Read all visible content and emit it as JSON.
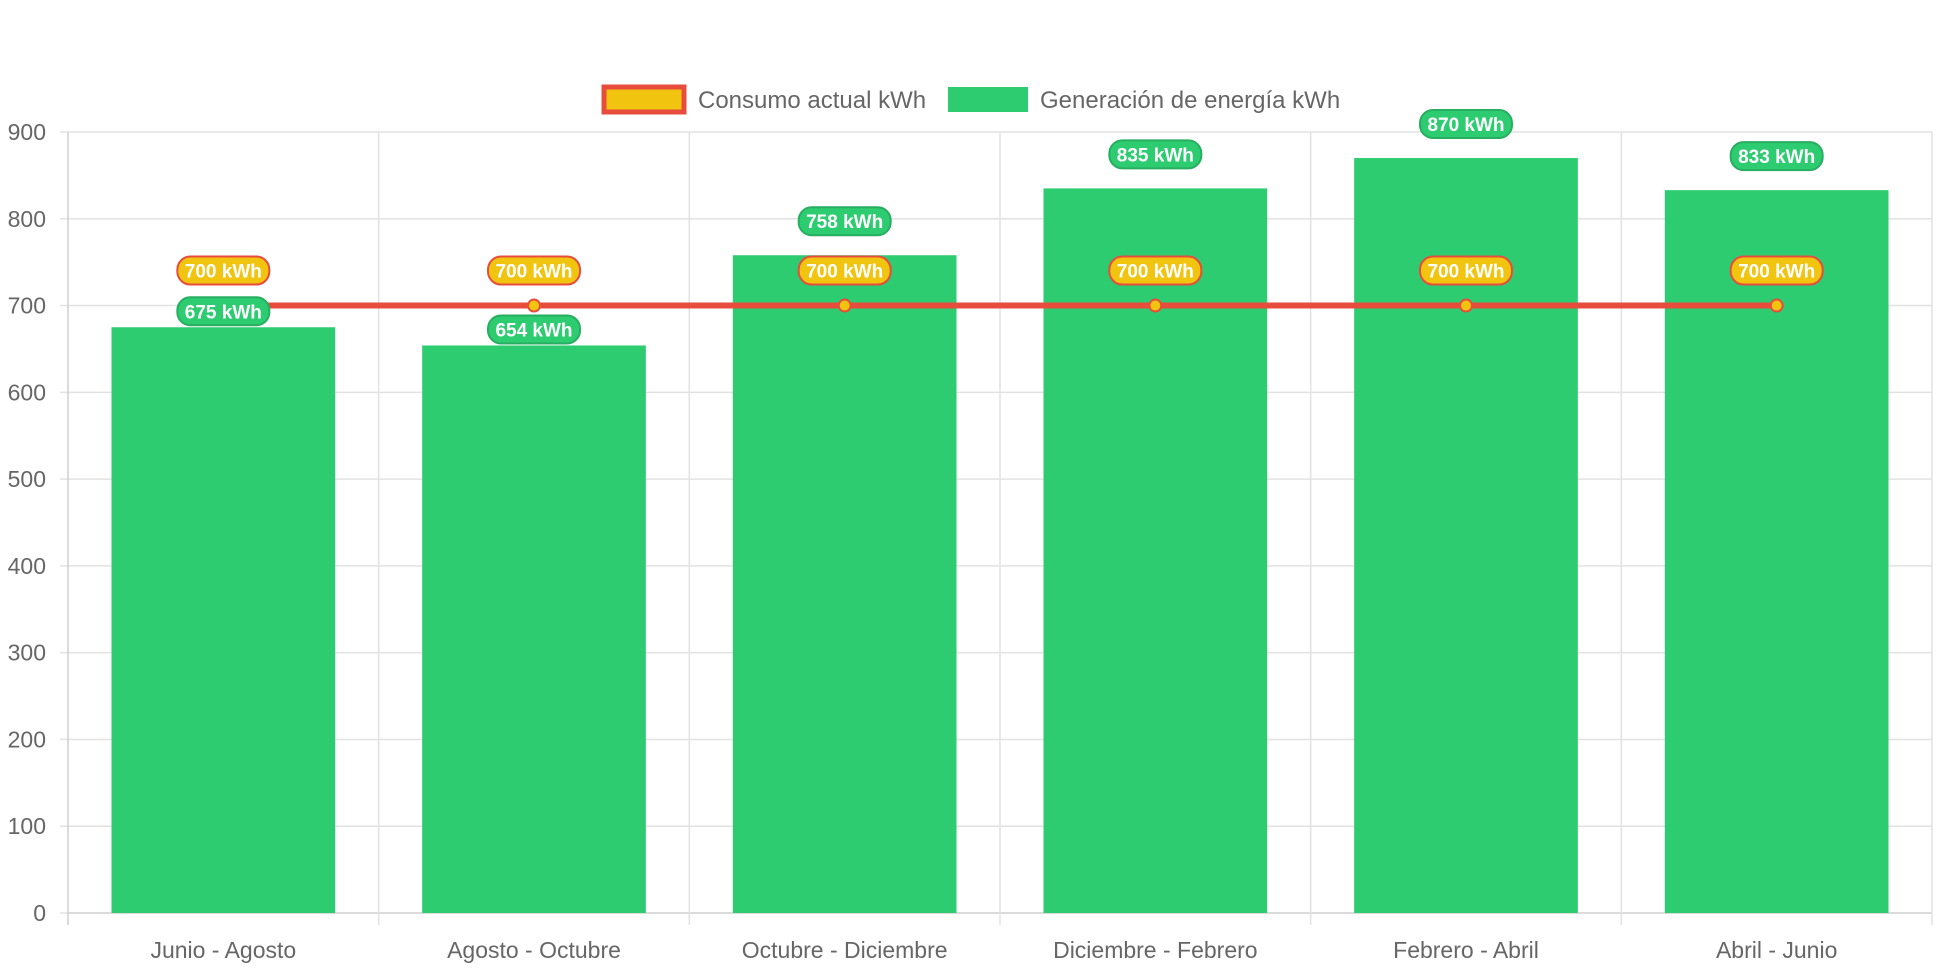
{
  "chart_data": {
    "type": "bar",
    "categories": [
      "Junio - Agosto",
      "Agosto - Octubre",
      "Octubre - Diciembre",
      "Diciembre - Febrero",
      "Febrero - Abril",
      "Abril - Junio"
    ],
    "series": [
      {
        "name": "Consumo actual kWh",
        "type": "line",
        "values": [
          700,
          700,
          700,
          700,
          700,
          700
        ],
        "labels": [
          "700 kWh",
          "700 kWh",
          "700 kWh",
          "700 kWh",
          "700 kWh",
          "700 kWh"
        ],
        "color": "#e74c3c",
        "point_color": "#f1c40f"
      },
      {
        "name": "Generación de energía kWh",
        "type": "bar",
        "values": [
          675,
          654,
          758,
          835,
          870,
          833
        ],
        "labels": [
          "675 kWh",
          "654 kWh",
          "758 kWh",
          "835 kWh",
          "870 kWh",
          "833 kWh"
        ],
        "color": "#2ecc71"
      }
    ],
    "ylim": [
      0,
      900
    ],
    "yticks": [
      "0",
      "100",
      "200",
      "300",
      "400",
      "500",
      "600",
      "700",
      "800",
      "900"
    ],
    "grid": true,
    "legend_position": "top-center"
  }
}
